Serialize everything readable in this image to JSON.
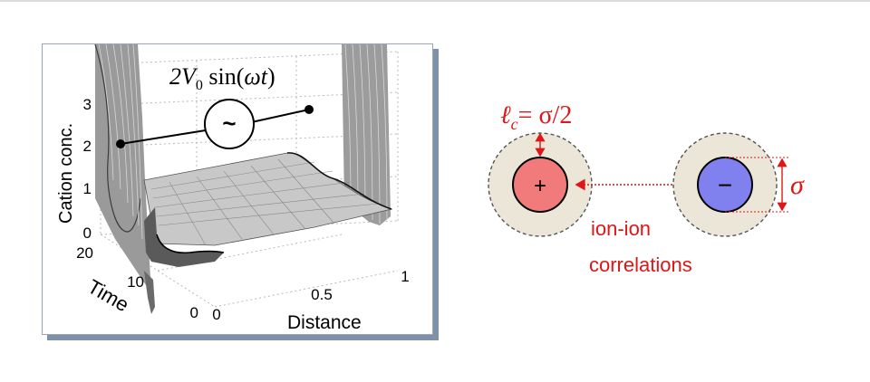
{
  "plot": {
    "ylabel": "Cation conc.",
    "time_label": "Time",
    "x_label": "Distance",
    "y_ticks": [
      "3",
      "2",
      "1",
      "0"
    ],
    "time_ticks": [
      "20",
      "10",
      "0"
    ],
    "x_ticks": [
      "0",
      "0.5",
      "1"
    ],
    "voltage_prefix": "2V",
    "voltage_sub": "0",
    "voltage_func": " sin(",
    "voltage_omega": "ωt",
    "voltage_close": ")",
    "source_symbol": "~"
  },
  "ions": {
    "cation_sign": "+",
    "anion_sign": "−",
    "lc_symbol": "ℓ",
    "lc_sub": "c",
    "lc_eq": "= σ/2",
    "sigma": "σ",
    "label_line1": "ion-ion",
    "label_line2": "correlations"
  },
  "colors": {
    "accent": "#e01515",
    "cation": "#f17a7a",
    "anion": "#8080ee",
    "shell": "#ece6d9"
  }
}
